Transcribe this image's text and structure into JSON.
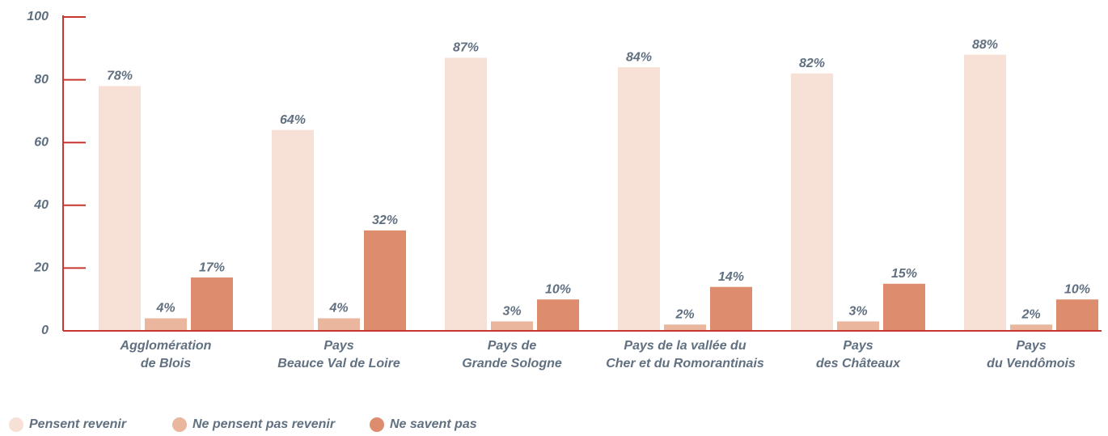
{
  "chart_data": {
    "type": "bar",
    "categories": [
      [
        "Agglomération",
        "de Blois"
      ],
      [
        "Pays",
        "Beauce Val de Loire"
      ],
      [
        "Pays de",
        "Grande Sologne"
      ],
      [
        "Pays de la vallée du",
        "Cher et du Romorantinais"
      ],
      [
        "Pays",
        "des Châteaux"
      ],
      [
        "Pays",
        "du Vendômois"
      ]
    ],
    "series": [
      {
        "name": "Pensent revenir",
        "color": "#f7e1d6",
        "values": [
          78,
          64,
          87,
          84,
          82,
          88
        ],
        "value_labels": [
          "78%",
          "64%",
          "87%",
          "84%",
          "82%",
          "88%"
        ]
      },
      {
        "name": "Ne pensent pas revenir",
        "color": "#eab69d",
        "values": [
          4,
          4,
          3,
          2,
          3,
          2
        ],
        "value_labels": [
          "4%",
          "4%",
          "3%",
          "2%",
          "3%",
          "2%"
        ]
      },
      {
        "name": "Ne savent pas",
        "color": "#dd8d6e",
        "values": [
          17,
          32,
          10,
          14,
          15,
          10
        ],
        "value_labels": [
          "17%",
          "32%",
          "10%",
          "14%",
          "15%",
          "10%"
        ]
      }
    ],
    "ylim": [
      0,
      100
    ],
    "yticks": [
      0,
      20,
      40,
      60,
      80,
      100
    ],
    "axis_color": "#c8372d"
  }
}
